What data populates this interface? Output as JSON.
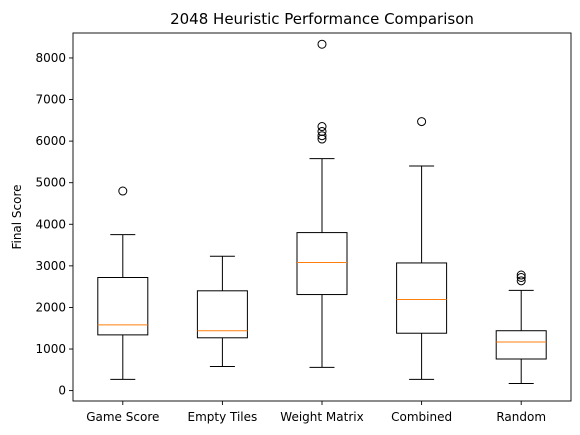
{
  "chart_data": {
    "type": "box",
    "title": "2048 Heuristic Performance Comparison",
    "xlabel": "",
    "ylabel": "Final Score",
    "ylim": [
      -250,
      8600
    ],
    "yticks": [
      0,
      1000,
      2000,
      3000,
      4000,
      5000,
      6000,
      7000,
      8000
    ],
    "categories": [
      "Game Score",
      "Empty Tiles",
      "Weight Matrix",
      "Combined",
      "Random"
    ],
    "boxes": [
      {
        "category": "Game Score",
        "whisker_low": 270,
        "q1": 1340,
        "median": 1580,
        "q3": 2720,
        "whisker_high": 3750,
        "outliers": [
          4800
        ]
      },
      {
        "category": "Empty Tiles",
        "whisker_low": 580,
        "q1": 1270,
        "median": 1440,
        "q3": 2400,
        "whisker_high": 3230,
        "outliers": []
      },
      {
        "category": "Weight Matrix",
        "whisker_low": 560,
        "q1": 2310,
        "median": 3080,
        "q3": 3800,
        "whisker_high": 5580,
        "outliers": [
          6050,
          6130,
          6230,
          6350,
          8330
        ]
      },
      {
        "category": "Combined",
        "whisker_low": 270,
        "q1": 1380,
        "median": 2190,
        "q3": 3070,
        "whisker_high": 5400,
        "outliers": [
          6470
        ]
      },
      {
        "category": "Random",
        "whisker_low": 170,
        "q1": 760,
        "median": 1170,
        "q3": 1440,
        "whisker_high": 2410,
        "outliers": [
          2640,
          2720,
          2780
        ]
      }
    ],
    "colors": {
      "box": "#000000",
      "median": "#ff7f0e",
      "outlier": "#000000"
    },
    "grid": false,
    "legend": "none"
  }
}
